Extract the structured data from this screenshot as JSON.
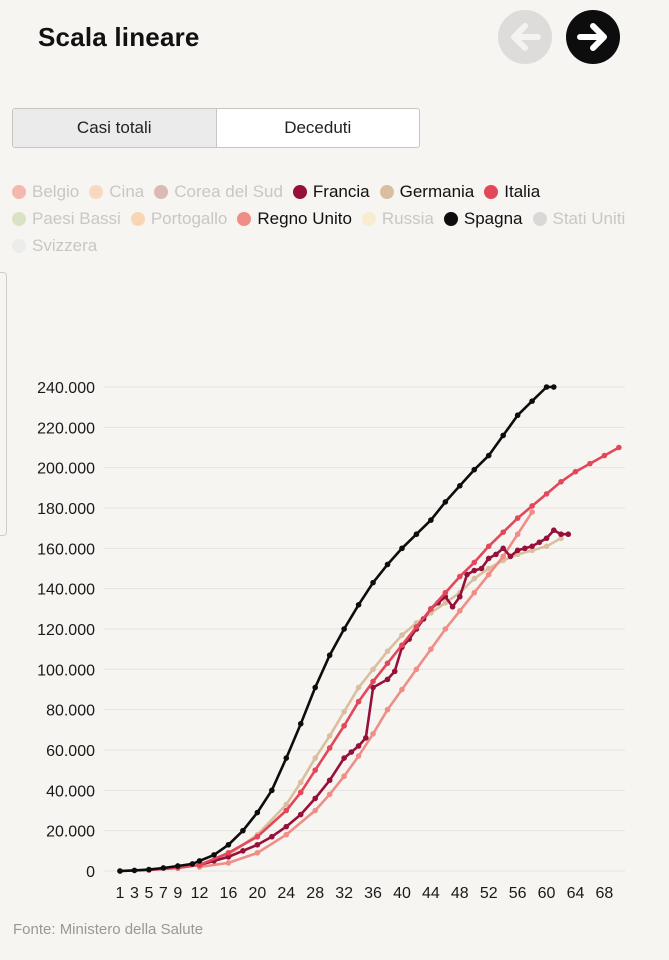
{
  "header": {
    "title": "Scala lineare"
  },
  "nav": {
    "prev_icon": "arrow-left-icon",
    "next_icon": "arrow-right-icon"
  },
  "tabs": [
    {
      "label": "Casi totali",
      "active": true
    },
    {
      "label": "Deceduti",
      "active": false
    }
  ],
  "source": "Fonte: Ministero della Salute",
  "legend": [
    {
      "label": "Belgio",
      "color": "#f4b8b0",
      "active": false
    },
    {
      "label": "Cina",
      "color": "#f8d8c0",
      "active": false
    },
    {
      "label": "Corea del Sud",
      "color": "#dcb9b6",
      "active": false
    },
    {
      "label": "Francia",
      "color": "#96113a",
      "active": true
    },
    {
      "label": "Germania",
      "color": "#d9bf9f",
      "active": true
    },
    {
      "label": "Italia",
      "color": "#e2475a",
      "active": true
    },
    {
      "label": "Paesi Bassi",
      "color": "#d9e2c3",
      "active": false
    },
    {
      "label": "Portogallo",
      "color": "#f8d6b3",
      "active": false
    },
    {
      "label": "Regno Unito",
      "color": "#ef8d86",
      "active": true
    },
    {
      "label": "Russia",
      "color": "#f7ecd0",
      "active": false
    },
    {
      "label": "Spagna",
      "color": "#0d0d0d",
      "active": true
    },
    {
      "label": "Stati Uniti",
      "color": "#d8d8d6",
      "active": false
    },
    {
      "label": "Svizzera",
      "color": "#ececea",
      "active": false
    }
  ],
  "chart_data": {
    "type": "line",
    "x_ticks": [
      1,
      3,
      5,
      7,
      9,
      12,
      16,
      20,
      24,
      28,
      32,
      36,
      40,
      44,
      48,
      52,
      56,
      60,
      64,
      68
    ],
    "y_ticks": [
      0,
      20000,
      40000,
      60000,
      80000,
      100000,
      120000,
      140000,
      160000,
      180000,
      200000,
      220000,
      240000
    ],
    "y_tick_labels": [
      "0",
      "20.000",
      "40.000",
      "60.000",
      "80.000",
      "100.000",
      "120.000",
      "140.000",
      "160.000",
      "180.000",
      "200.000",
      "220.000",
      "240.000"
    ],
    "xlim": [
      1,
      69
    ],
    "ylim": [
      0,
      240000
    ],
    "grid": true,
    "series": [
      {
        "name": "Germania",
        "color": "#d9bf9f",
        "x": [
          12,
          16,
          20,
          24,
          26,
          28,
          30,
          32,
          34,
          36,
          38,
          40,
          42,
          44,
          46,
          48,
          50,
          52,
          54,
          56,
          58,
          60,
          62
        ],
        "y": [
          3000,
          8000,
          18000,
          33000,
          44000,
          56000,
          67000,
          79000,
          91000,
          100000,
          109000,
          117000,
          123000,
          128000,
          133000,
          138000,
          145000,
          150000,
          154000,
          157000,
          159000,
          161000,
          165000
        ]
      },
      {
        "name": "Regno Unito",
        "color": "#ef8d86",
        "x": [
          12,
          16,
          20,
          24,
          28,
          30,
          32,
          34,
          36,
          38,
          40,
          42,
          44,
          46,
          48,
          50,
          52,
          54,
          56,
          58
        ],
        "y": [
          2000,
          4000,
          9000,
          18000,
          30000,
          38000,
          47000,
          57000,
          68000,
          80000,
          90000,
          100000,
          110000,
          120000,
          129000,
          138000,
          147000,
          156000,
          167000,
          178000
        ]
      },
      {
        "name": "Francia",
        "color": "#96113a",
        "x": [
          12,
          14,
          16,
          18,
          20,
          22,
          24,
          26,
          28,
          30,
          32,
          33,
          34,
          35,
          36,
          38,
          39,
          40,
          41,
          42,
          43,
          44,
          45,
          46,
          47,
          48,
          49,
          50,
          51,
          52,
          53,
          54,
          55,
          56,
          57,
          58,
          59,
          60,
          61,
          62,
          63
        ],
        "y": [
          3000,
          5000,
          7000,
          10000,
          13000,
          17000,
          22000,
          28000,
          36000,
          45000,
          56000,
          59000,
          62000,
          66000,
          91000,
          95000,
          99000,
          111000,
          115000,
          120000,
          125000,
          130000,
          133000,
          136000,
          131000,
          136000,
          147000,
          149000,
          150000,
          155000,
          157000,
          160000,
          156000,
          159000,
          160000,
          161000,
          163000,
          165000,
          169000,
          167000,
          167000
        ]
      },
      {
        "name": "Italia",
        "color": "#e2475a",
        "x": [
          1,
          5,
          9,
          12,
          16,
          20,
          24,
          26,
          28,
          30,
          32,
          34,
          36,
          38,
          40,
          42,
          44,
          46,
          48,
          50,
          52,
          54,
          56,
          58,
          60,
          62,
          64,
          66,
          68,
          70
        ],
        "y": [
          0,
          500,
          1500,
          3000,
          9000,
          17000,
          30000,
          39000,
          50000,
          61000,
          72000,
          84000,
          94000,
          103000,
          112000,
          121000,
          130000,
          138000,
          146000,
          153000,
          161000,
          168000,
          175000,
          181000,
          187000,
          193000,
          198000,
          202000,
          206000,
          210000
        ]
      },
      {
        "name": "Spagna",
        "color": "#0d0d0d",
        "x": [
          1,
          3,
          5,
          7,
          9,
          11,
          12,
          14,
          16,
          18,
          20,
          22,
          24,
          26,
          28,
          30,
          32,
          34,
          36,
          38,
          40,
          42,
          44,
          46,
          48,
          50,
          52,
          54,
          56,
          58,
          60,
          61
        ],
        "y": [
          0,
          300,
          700,
          1500,
          2500,
          3500,
          5000,
          8000,
          13000,
          20000,
          29000,
          40000,
          56000,
          73000,
          91000,
          107000,
          120000,
          132000,
          143000,
          152000,
          160000,
          167000,
          174000,
          183000,
          191000,
          199000,
          206000,
          216000,
          226000,
          233000,
          240000,
          240000
        ]
      }
    ]
  }
}
